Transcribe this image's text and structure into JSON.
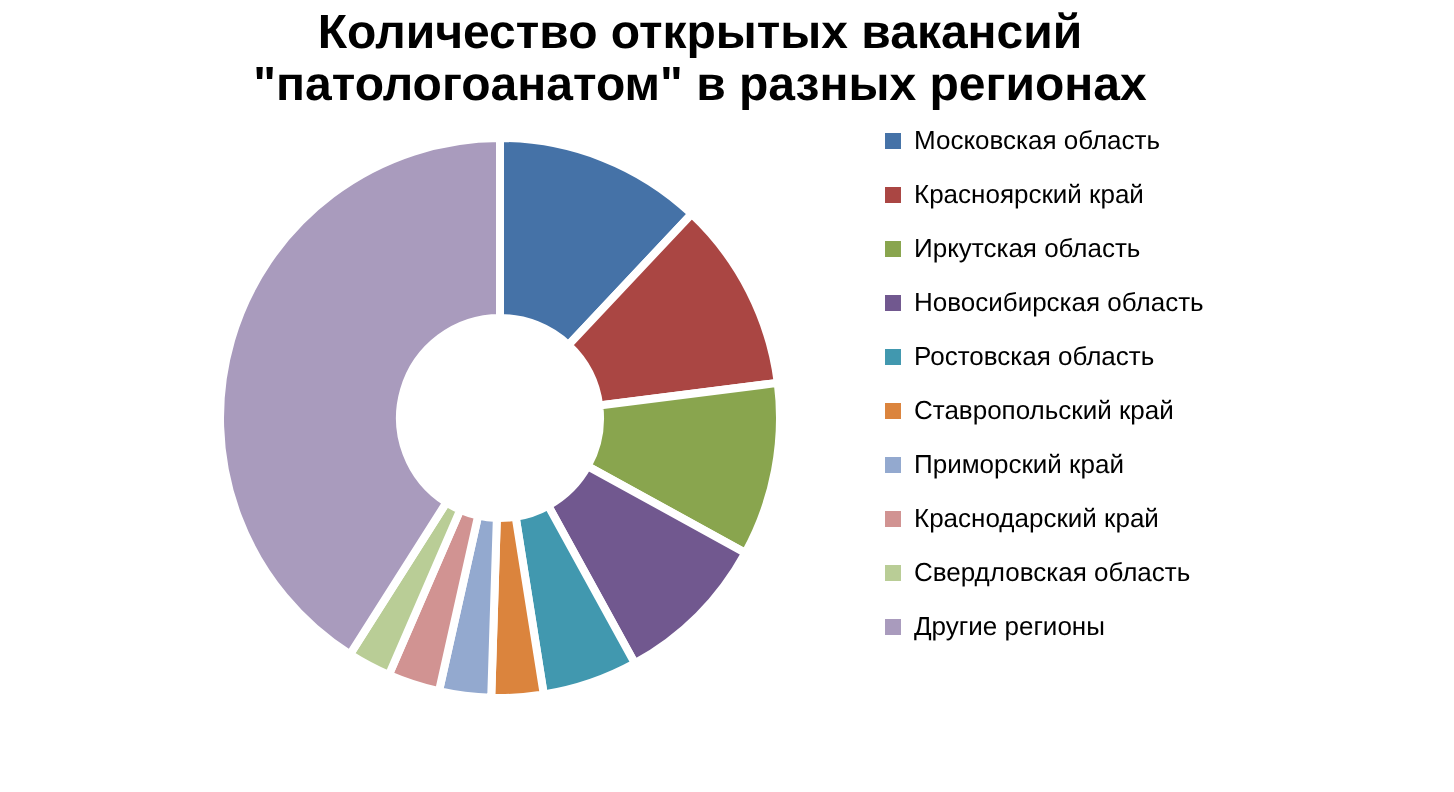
{
  "chart_data": {
    "type": "donut",
    "title": "Количество открытых вакансий \"патологоанатом\" в разных регионах",
    "categories": [
      "Московская область",
      "Красноярский край",
      "Иркутская область",
      "Новосибирская область",
      "Ростовская область",
      "Ставропольский край",
      "Приморский край",
      "Краснодарский край",
      "Свердловская область",
      "Другие регионы"
    ],
    "values": [
      12,
      11,
      10,
      9,
      5.5,
      3,
      3,
      3,
      2.5,
      41
    ],
    "colors": [
      "#4572a7",
      "#aa4643",
      "#89a54e",
      "#71588f",
      "#4198af",
      "#db843d",
      "#93a9cf",
      "#d19392",
      "#b9cd96",
      "#a99bbd"
    ],
    "legend": "right"
  }
}
